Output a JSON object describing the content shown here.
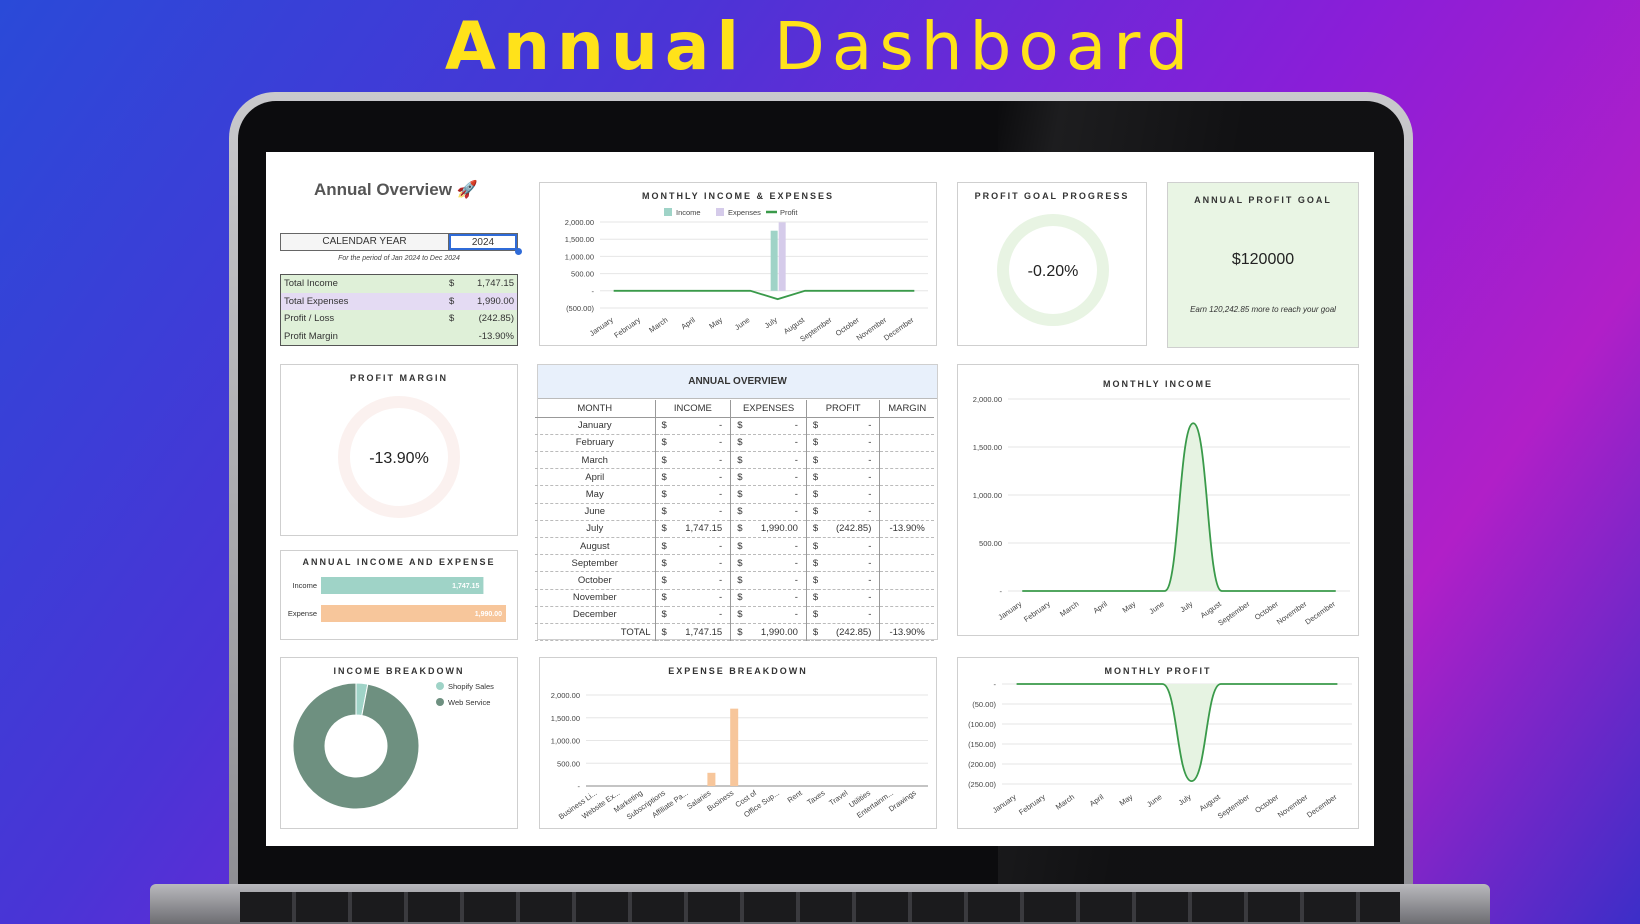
{
  "hero": {
    "bold": "Annual",
    "light": "Dashboard"
  },
  "overview": {
    "title": "Annual Overview 🚀",
    "calendar_label": "CALENDAR YEAR",
    "year": "2024",
    "period": "For the period of Jan 2024 to Dec 2024",
    "summary": [
      {
        "label": "Total Income",
        "cur": "$",
        "value": "1,747.15"
      },
      {
        "label": "Total Expenses",
        "cur": "$",
        "value": "1,990.00"
      },
      {
        "label": "Profit / Loss",
        "cur": "$",
        "value": "(242.85)"
      },
      {
        "label": "Profit Margin",
        "cur": "",
        "value": "-13.90%"
      }
    ]
  },
  "monthly_income_expenses": {
    "title": "MONTHLY INCOME & EXPENSES",
    "legend": [
      "Income",
      "Expenses",
      "Profit"
    ]
  },
  "profit_goal_progress": {
    "title": "PROFIT GOAL PROGRESS",
    "value": "-0.20%"
  },
  "annual_profit_goal": {
    "title": "ANNUAL PROFIT GOAL",
    "value": "$120000",
    "note": "Earn 120,242.85 more to reach your goal"
  },
  "profit_margin": {
    "title": "PROFIT MARGIN",
    "value": "-13.90%"
  },
  "annual_income_expense": {
    "title": "ANNUAL INCOME AND EXPENSE",
    "rows": [
      {
        "label": "Income",
        "value": "1,747.15"
      },
      {
        "label": "Expense",
        "value": "1,990.00"
      }
    ]
  },
  "income_breakdown": {
    "title": "INCOME BREAKDOWN",
    "legend": [
      "Shopify Sales",
      "Web Service"
    ]
  },
  "expense_breakdown": {
    "title": "EXPENSE BREAKDOWN"
  },
  "monthly_income": {
    "title": "MONTHLY INCOME"
  },
  "monthly_profit": {
    "title": "MONTHLY PROFIT"
  },
  "table": {
    "title": "ANNUAL OVERVIEW",
    "headers": [
      "MONTH",
      "INCOME",
      "EXPENSES",
      "PROFIT",
      "MARGIN"
    ],
    "cur": "$",
    "rows": [
      {
        "month": "January",
        "income": "-",
        "expenses": "-",
        "profit": "-",
        "margin": ""
      },
      {
        "month": "February",
        "income": "-",
        "expenses": "-",
        "profit": "-",
        "margin": ""
      },
      {
        "month": "March",
        "income": "-",
        "expenses": "-",
        "profit": "-",
        "margin": ""
      },
      {
        "month": "April",
        "income": "-",
        "expenses": "-",
        "profit": "-",
        "margin": ""
      },
      {
        "month": "May",
        "income": "-",
        "expenses": "-",
        "profit": "-",
        "margin": ""
      },
      {
        "month": "June",
        "income": "-",
        "expenses": "-",
        "profit": "-",
        "margin": ""
      },
      {
        "month": "July",
        "income": "1,747.15",
        "expenses": "1,990.00",
        "profit": "(242.85)",
        "margin": "-13.90%"
      },
      {
        "month": "August",
        "income": "-",
        "expenses": "-",
        "profit": "-",
        "margin": ""
      },
      {
        "month": "September",
        "income": "-",
        "expenses": "-",
        "profit": "-",
        "margin": ""
      },
      {
        "month": "October",
        "income": "-",
        "expenses": "-",
        "profit": "-",
        "margin": ""
      },
      {
        "month": "November",
        "income": "-",
        "expenses": "-",
        "profit": "-",
        "margin": ""
      },
      {
        "month": "December",
        "income": "-",
        "expenses": "-",
        "profit": "-",
        "margin": ""
      }
    ],
    "total": {
      "label": "TOTAL",
      "income": "1,747.15",
      "expenses": "1,990.00",
      "profit": "(242.85)",
      "margin": "-13.90%"
    }
  },
  "colors": {
    "income": "#9fd3c7",
    "expenses": "#d5cbea",
    "profit": "#3a9a4a",
    "expense_bar": "#f7c69b",
    "donut_dark": "#6e9080",
    "goal_bg": "#e9f5e4"
  },
  "chart_data": [
    {
      "type": "bar",
      "title": "MONTHLY INCOME & EXPENSES",
      "categories": [
        "January",
        "February",
        "March",
        "April",
        "May",
        "June",
        "July",
        "August",
        "September",
        "October",
        "November",
        "December"
      ],
      "series": [
        {
          "name": "Income",
          "values": [
            0,
            0,
            0,
            0,
            0,
            0,
            1747.15,
            0,
            0,
            0,
            0,
            0
          ]
        },
        {
          "name": "Expenses",
          "values": [
            0,
            0,
            0,
            0,
            0,
            0,
            1990,
            0,
            0,
            0,
            0,
            0
          ]
        },
        {
          "name": "Profit",
          "values": [
            0,
            0,
            0,
            0,
            0,
            0,
            -242.85,
            0,
            0,
            0,
            0,
            0
          ]
        }
      ],
      "yticks": [
        "2,000.00",
        "1,500.00",
        "1,000.00",
        "500.00",
        "-",
        "(500.00)"
      ],
      "ylim": [
        -500,
        2000
      ]
    },
    {
      "type": "area",
      "title": "MONTHLY INCOME",
      "categories": [
        "January",
        "February",
        "March",
        "April",
        "May",
        "June",
        "July",
        "August",
        "September",
        "October",
        "November",
        "December"
      ],
      "values": [
        0,
        0,
        0,
        0,
        0,
        0,
        1747.15,
        0,
        0,
        0,
        0,
        0
      ],
      "yticks": [
        "2,000.00",
        "1,500.00",
        "1,000.00",
        "500.00",
        "-"
      ],
      "ylim": [
        0,
        2000
      ]
    },
    {
      "type": "area",
      "title": "MONTHLY PROFIT",
      "categories": [
        "January",
        "February",
        "March",
        "April",
        "May",
        "June",
        "July",
        "August",
        "September",
        "October",
        "November",
        "December"
      ],
      "values": [
        0,
        0,
        0,
        0,
        0,
        0,
        -242.85,
        0,
        0,
        0,
        0,
        0
      ],
      "yticks": [
        "-",
        "(50.00)",
        "(100.00)",
        "(150.00)",
        "(200.00)",
        "(250.00)"
      ],
      "ylim": [
        -250,
        0
      ]
    },
    {
      "type": "bar",
      "title": "EXPENSE BREAKDOWN",
      "categories": [
        "Business Li...",
        "Website Ex...",
        "Marketing",
        "Subscriptions",
        "Affiliate Pa...",
        "Salaries",
        "Business",
        "Cost of",
        "Office Sup...",
        "Rent",
        "Taxes",
        "Travel",
        "Utilities",
        "Entertainm...",
        "Drawings"
      ],
      "values": [
        0,
        0,
        0,
        0,
        0,
        290,
        1700,
        0,
        0,
        0,
        0,
        0,
        0,
        0,
        0
      ],
      "yticks": [
        "2,000.00",
        "1,500.00",
        "1,000.00",
        "500.00",
        "-"
      ],
      "ylim": [
        0,
        2000
      ]
    },
    {
      "type": "pie",
      "title": "INCOME BREAKDOWN",
      "categories": [
        "Shopify Sales",
        "Web Service"
      ],
      "values": [
        3,
        97
      ]
    },
    {
      "type": "bar",
      "title": "ANNUAL INCOME AND EXPENSE",
      "categories": [
        "Income",
        "Expense"
      ],
      "values": [
        1747.15,
        1990
      ]
    }
  ]
}
